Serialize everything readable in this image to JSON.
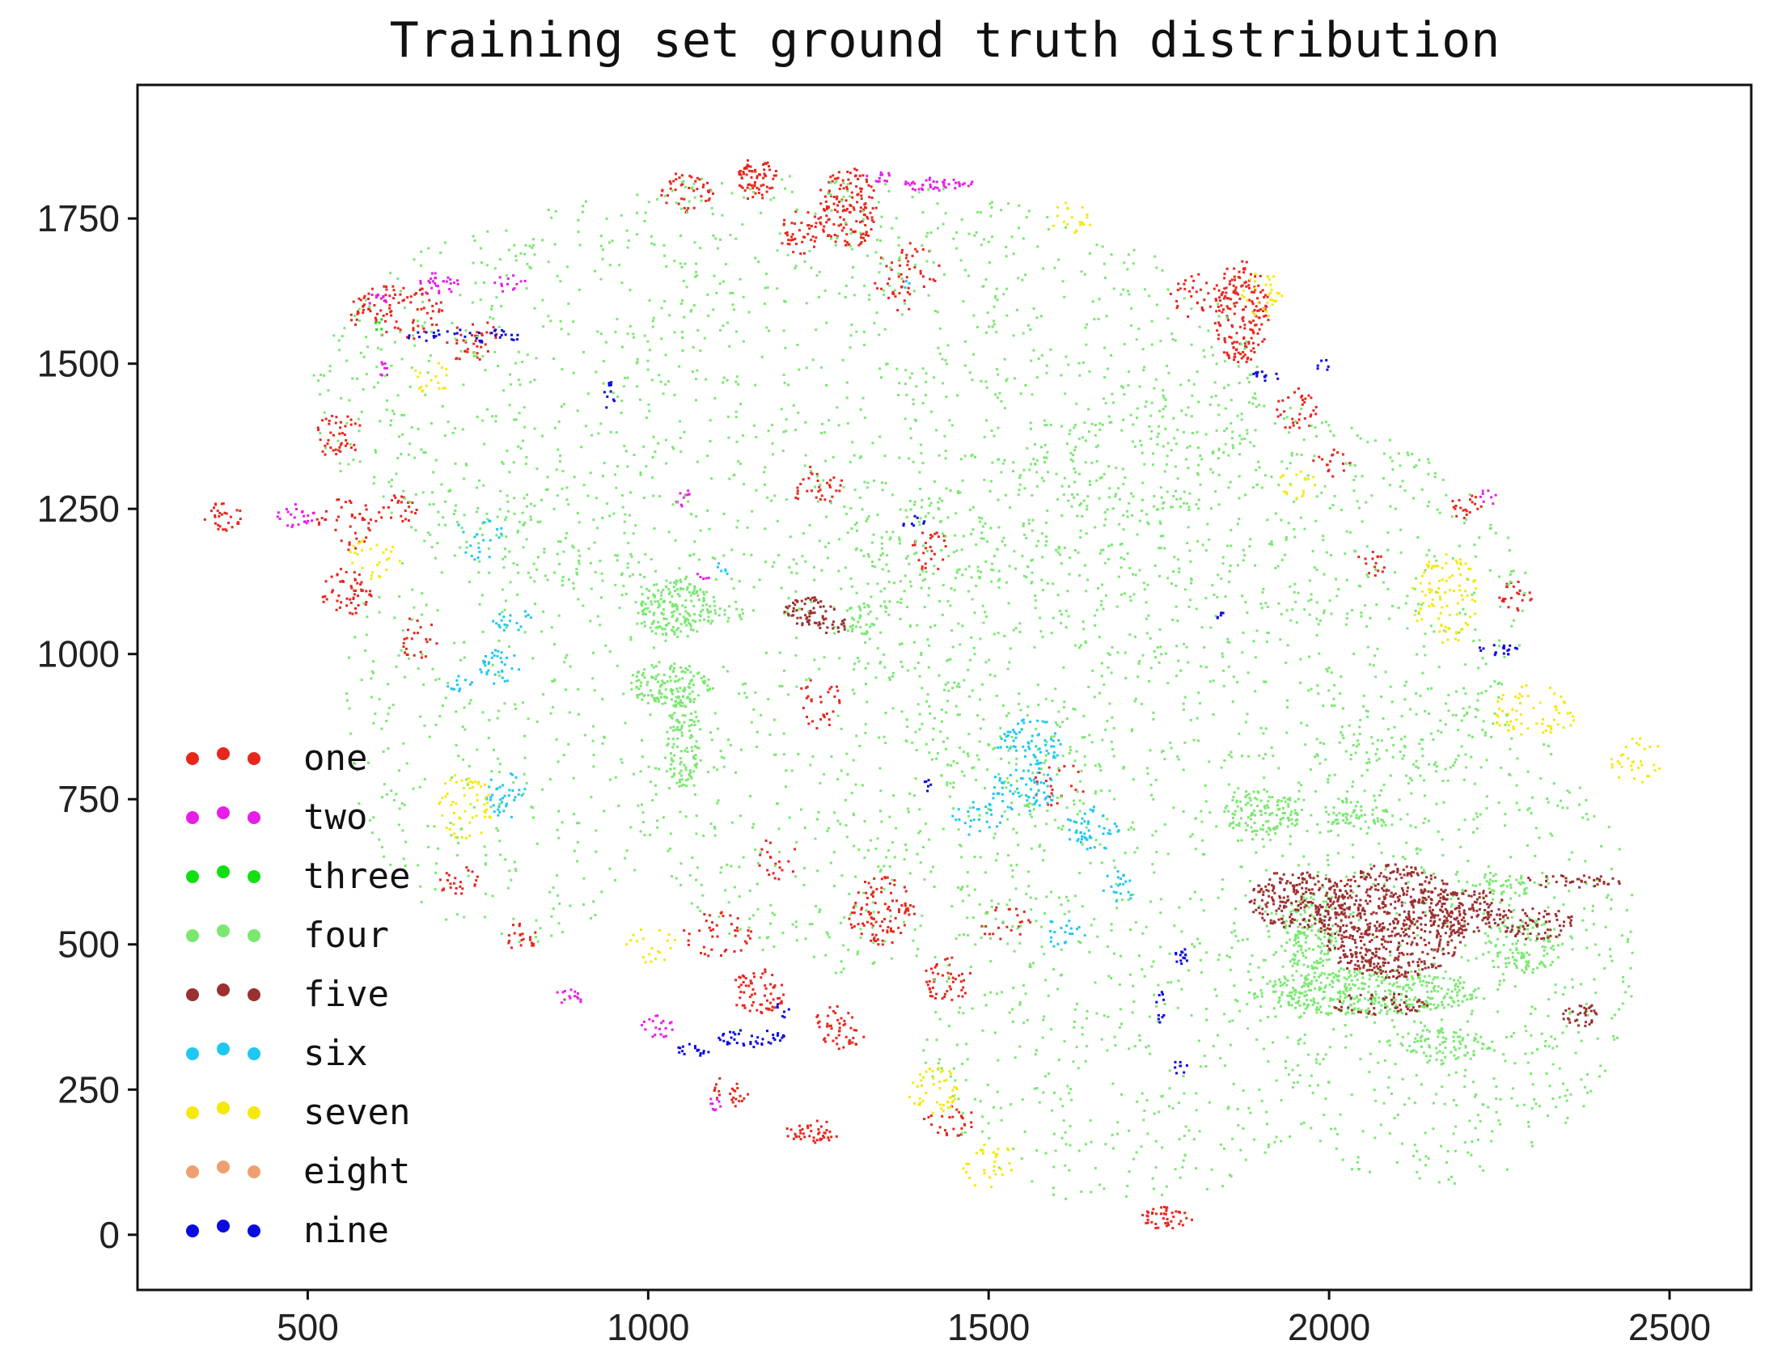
{
  "chart_data": {
    "type": "scatter",
    "title": "Training set ground truth distribution",
    "xlabel": "",
    "ylabel": "",
    "xlim": [
      250,
      2620
    ],
    "ylim": [
      -95,
      1980
    ],
    "xticks": [
      500,
      1000,
      1500,
      2000,
      2500
    ],
    "yticks": [
      0,
      250,
      500,
      750,
      1000,
      1250,
      1500,
      1750
    ],
    "grid": false,
    "legend_position": "lower-left",
    "series": [
      {
        "name": "one",
        "color": "#e8261c",
        "clusters": [
          {
            "cx": 1160,
            "cy": 1820,
            "rx": 30,
            "ry": 40,
            "density": 0.85
          },
          {
            "cx": 1290,
            "cy": 1770,
            "rx": 45,
            "ry": 70,
            "density": 0.7
          },
          {
            "cx": 1220,
            "cy": 1730,
            "rx": 30,
            "ry": 40,
            "density": 0.5
          },
          {
            "cx": 1055,
            "cy": 1800,
            "rx": 40,
            "ry": 40,
            "density": 0.4
          },
          {
            "cx": 1380,
            "cy": 1650,
            "rx": 50,
            "ry": 60,
            "density": 0.25
          },
          {
            "cx": 1870,
            "cy": 1590,
            "rx": 40,
            "ry": 90,
            "density": 0.75
          },
          {
            "cx": 1805,
            "cy": 1620,
            "rx": 40,
            "ry": 40,
            "density": 0.3
          },
          {
            "cx": 1950,
            "cy": 1420,
            "rx": 30,
            "ry": 40,
            "density": 0.4
          },
          {
            "cx": 630,
            "cy": 1590,
            "rx": 70,
            "ry": 50,
            "density": 0.4
          },
          {
            "cx": 740,
            "cy": 1540,
            "rx": 40,
            "ry": 40,
            "density": 0.35
          },
          {
            "cx": 540,
            "cy": 1380,
            "rx": 40,
            "ry": 40,
            "density": 0.4
          },
          {
            "cx": 375,
            "cy": 1240,
            "rx": 30,
            "ry": 30,
            "density": 0.5
          },
          {
            "cx": 555,
            "cy": 1225,
            "rx": 45,
            "ry": 45,
            "density": 0.3
          },
          {
            "cx": 555,
            "cy": 1110,
            "rx": 40,
            "ry": 40,
            "density": 0.5
          },
          {
            "cx": 630,
            "cy": 1250,
            "rx": 30,
            "ry": 30,
            "density": 0.4
          },
          {
            "cx": 660,
            "cy": 1030,
            "rx": 30,
            "ry": 40,
            "density": 0.3
          },
          {
            "cx": 1250,
            "cy": 1290,
            "rx": 40,
            "ry": 40,
            "density": 0.3
          },
          {
            "cx": 1410,
            "cy": 1180,
            "rx": 30,
            "ry": 40,
            "density": 0.35
          },
          {
            "cx": 1250,
            "cy": 920,
            "rx": 30,
            "ry": 50,
            "density": 0.3
          },
          {
            "cx": 1190,
            "cy": 650,
            "rx": 30,
            "ry": 40,
            "density": 0.25
          },
          {
            "cx": 1340,
            "cy": 560,
            "rx": 50,
            "ry": 60,
            "density": 0.5
          },
          {
            "cx": 1160,
            "cy": 420,
            "rx": 40,
            "ry": 40,
            "density": 0.6
          },
          {
            "cx": 1280,
            "cy": 360,
            "rx": 40,
            "ry": 40,
            "density": 0.45
          },
          {
            "cx": 1100,
            "cy": 520,
            "rx": 50,
            "ry": 40,
            "density": 0.3
          },
          {
            "cx": 1440,
            "cy": 440,
            "rx": 40,
            "ry": 40,
            "density": 0.45
          },
          {
            "cx": 1520,
            "cy": 540,
            "rx": 40,
            "ry": 30,
            "density": 0.3
          },
          {
            "cx": 1240,
            "cy": 180,
            "rx": 40,
            "ry": 20,
            "density": 0.8
          },
          {
            "cx": 1120,
            "cy": 250,
            "rx": 30,
            "ry": 30,
            "density": 0.4
          },
          {
            "cx": 1440,
            "cy": 200,
            "rx": 40,
            "ry": 30,
            "density": 0.35
          },
          {
            "cx": 1760,
            "cy": 30,
            "rx": 40,
            "ry": 20,
            "density": 0.8
          },
          {
            "cx": 2200,
            "cy": 1250,
            "rx": 25,
            "ry": 30,
            "density": 0.4
          },
          {
            "cx": 2060,
            "cy": 1160,
            "rx": 25,
            "ry": 25,
            "density": 0.35
          },
          {
            "cx": 2270,
            "cy": 1100,
            "rx": 30,
            "ry": 30,
            "density": 0.4
          },
          {
            "cx": 720,
            "cy": 610,
            "rx": 30,
            "ry": 30,
            "density": 0.4
          },
          {
            "cx": 810,
            "cy": 520,
            "rx": 30,
            "ry": 30,
            "density": 0.35
          },
          {
            "cx": 1600,
            "cy": 780,
            "rx": 40,
            "ry": 40,
            "density": 0.2
          },
          {
            "cx": 2000,
            "cy": 1330,
            "rx": 30,
            "ry": 30,
            "density": 0.3
          }
        ]
      },
      {
        "name": "two",
        "color": "#e81ee8",
        "clusters": [
          {
            "cx": 1410,
            "cy": 1810,
            "rx": 40,
            "ry": 12,
            "density": 0.9
          },
          {
            "cx": 1340,
            "cy": 1820,
            "rx": 25,
            "ry": 12,
            "density": 0.6
          },
          {
            "cx": 1440,
            "cy": 1810,
            "rx": 40,
            "ry": 10,
            "density": 0.5
          },
          {
            "cx": 690,
            "cy": 1640,
            "rx": 30,
            "ry": 20,
            "density": 0.7
          },
          {
            "cx": 600,
            "cy": 1610,
            "rx": 15,
            "ry": 15,
            "density": 0.7
          },
          {
            "cx": 795,
            "cy": 1640,
            "rx": 25,
            "ry": 15,
            "density": 0.5
          },
          {
            "cx": 605,
            "cy": 1490,
            "rx": 15,
            "ry": 15,
            "density": 0.5
          },
          {
            "cx": 480,
            "cy": 1240,
            "rx": 30,
            "ry": 20,
            "density": 0.6
          },
          {
            "cx": 1050,
            "cy": 1270,
            "rx": 15,
            "ry": 15,
            "density": 0.7
          },
          {
            "cx": 1080,
            "cy": 1140,
            "rx": 10,
            "ry": 12,
            "density": 0.6
          },
          {
            "cx": 880,
            "cy": 410,
            "rx": 25,
            "ry": 15,
            "density": 0.6
          },
          {
            "cx": 1010,
            "cy": 360,
            "rx": 25,
            "ry": 20,
            "density": 0.6
          },
          {
            "cx": 1100,
            "cy": 230,
            "rx": 15,
            "ry": 15,
            "density": 0.6
          },
          {
            "cx": 2230,
            "cy": 1270,
            "rx": 15,
            "ry": 15,
            "density": 0.5
          }
        ]
      },
      {
        "name": "three",
        "color": "#10e010",
        "clusters": [
          {
            "cx": 600,
            "cy": 1570,
            "rx": 15,
            "ry": 10,
            "density": 0.6
          }
        ]
      },
      {
        "name": "four",
        "color": "#7ae870",
        "clusters": [
          {
            "cx": 1200,
            "cy": 1450,
            "rx": 700,
            "ry": 380,
            "density": 0.09
          },
          {
            "cx": 1800,
            "cy": 1050,
            "rx": 500,
            "ry": 400,
            "density": 0.09
          },
          {
            "cx": 2150,
            "cy": 500,
            "rx": 300,
            "ry": 420,
            "density": 0.08
          },
          {
            "cx": 1700,
            "cy": 350,
            "rx": 300,
            "ry": 300,
            "density": 0.07
          },
          {
            "cx": 800,
            "cy": 900,
            "rx": 250,
            "ry": 400,
            "density": 0.06
          },
          {
            "cx": 1300,
            "cy": 750,
            "rx": 300,
            "ry": 300,
            "density": 0.07
          },
          {
            "cx": 1040,
            "cy": 1080,
            "rx": 60,
            "ry": 50,
            "density": 0.9
          },
          {
            "cx": 1030,
            "cy": 950,
            "rx": 60,
            "ry": 40,
            "density": 0.85
          },
          {
            "cx": 1050,
            "cy": 850,
            "rx": 25,
            "ry": 80,
            "density": 0.8
          },
          {
            "cx": 1310,
            "cy": 1060,
            "rx": 25,
            "ry": 30,
            "density": 0.6
          },
          {
            "cx": 1120,
            "cy": 1070,
            "rx": 20,
            "ry": 15,
            "density": 0.6
          },
          {
            "cx": 2050,
            "cy": 420,
            "rx": 170,
            "ry": 40,
            "density": 0.8
          },
          {
            "cx": 1970,
            "cy": 520,
            "rx": 40,
            "ry": 70,
            "density": 0.7
          },
          {
            "cx": 1900,
            "cy": 730,
            "rx": 60,
            "ry": 40,
            "density": 0.75
          },
          {
            "cx": 2050,
            "cy": 720,
            "rx": 60,
            "ry": 20,
            "density": 0.6
          },
          {
            "cx": 2170,
            "cy": 330,
            "rx": 70,
            "ry": 30,
            "density": 0.6
          },
          {
            "cx": 2280,
            "cy": 500,
            "rx": 60,
            "ry": 50,
            "density": 0.5
          },
          {
            "cx": 2250,
            "cy": 600,
            "rx": 60,
            "ry": 20,
            "density": 0.5
          }
        ]
      },
      {
        "name": "five",
        "color": "#9c3030",
        "clusters": [
          {
            "cx": 2090,
            "cy": 540,
            "rx": 110,
            "ry": 100,
            "density": 0.9
          },
          {
            "cx": 1950,
            "cy": 580,
            "rx": 70,
            "ry": 50,
            "density": 0.85
          },
          {
            "cx": 2200,
            "cy": 560,
            "rx": 60,
            "ry": 40,
            "density": 0.7
          },
          {
            "cx": 2300,
            "cy": 540,
            "rx": 60,
            "ry": 30,
            "density": 0.6
          },
          {
            "cx": 2350,
            "cy": 610,
            "rx": 80,
            "ry": 12,
            "density": 0.6
          },
          {
            "cx": 2370,
            "cy": 380,
            "rx": 30,
            "ry": 20,
            "density": 0.8
          },
          {
            "cx": 2080,
            "cy": 400,
            "rx": 80,
            "ry": 20,
            "density": 0.5
          },
          {
            "cx": 1235,
            "cy": 1075,
            "rx": 40,
            "ry": 25,
            "density": 0.9
          },
          {
            "cx": 1270,
            "cy": 1050,
            "rx": 25,
            "ry": 15,
            "density": 0.8
          }
        ]
      },
      {
        "name": "six",
        "color": "#1ec8f0",
        "clusters": [
          {
            "cx": 780,
            "cy": 980,
            "rx": 30,
            "ry": 30,
            "density": 0.55
          },
          {
            "cx": 720,
            "cy": 950,
            "rx": 20,
            "ry": 20,
            "density": 0.45
          },
          {
            "cx": 800,
            "cy": 1060,
            "rx": 30,
            "ry": 20,
            "density": 0.5
          },
          {
            "cx": 790,
            "cy": 760,
            "rx": 30,
            "ry": 40,
            "density": 0.45
          },
          {
            "cx": 750,
            "cy": 1200,
            "rx": 40,
            "ry": 40,
            "density": 0.2
          },
          {
            "cx": 1560,
            "cy": 850,
            "rx": 50,
            "ry": 40,
            "density": 0.5
          },
          {
            "cx": 1550,
            "cy": 770,
            "rx": 50,
            "ry": 40,
            "density": 0.45
          },
          {
            "cx": 1650,
            "cy": 700,
            "rx": 40,
            "ry": 40,
            "density": 0.45
          },
          {
            "cx": 1690,
            "cy": 600,
            "rx": 25,
            "ry": 30,
            "density": 0.4
          },
          {
            "cx": 1480,
            "cy": 720,
            "rx": 40,
            "ry": 30,
            "density": 0.35
          },
          {
            "cx": 1600,
            "cy": 520,
            "rx": 40,
            "ry": 25,
            "density": 0.3
          },
          {
            "cx": 1110,
            "cy": 1150,
            "rx": 12,
            "ry": 12,
            "density": 0.6
          },
          {
            "cx": 1380,
            "cy": 1640,
            "rx": 10,
            "ry": 10,
            "density": 0.5
          }
        ]
      },
      {
        "name": "seven",
        "color": "#f5e80a",
        "clusters": [
          {
            "cx": 1900,
            "cy": 1620,
            "rx": 30,
            "ry": 40,
            "density": 0.4
          },
          {
            "cx": 1620,
            "cy": 1750,
            "rx": 30,
            "ry": 30,
            "density": 0.35
          },
          {
            "cx": 2170,
            "cy": 1100,
            "rx": 50,
            "ry": 80,
            "density": 0.35
          },
          {
            "cx": 2300,
            "cy": 900,
            "rx": 60,
            "ry": 50,
            "density": 0.3
          },
          {
            "cx": 2450,
            "cy": 820,
            "rx": 40,
            "ry": 40,
            "density": 0.3
          },
          {
            "cx": 730,
            "cy": 740,
            "rx": 40,
            "ry": 60,
            "density": 0.35
          },
          {
            "cx": 680,
            "cy": 1480,
            "rx": 30,
            "ry": 30,
            "density": 0.3
          },
          {
            "cx": 600,
            "cy": 1170,
            "rx": 40,
            "ry": 40,
            "density": 0.25
          },
          {
            "cx": 1420,
            "cy": 250,
            "rx": 40,
            "ry": 40,
            "density": 0.45
          },
          {
            "cx": 1500,
            "cy": 120,
            "rx": 40,
            "ry": 40,
            "density": 0.3
          },
          {
            "cx": 1000,
            "cy": 500,
            "rx": 40,
            "ry": 30,
            "density": 0.25
          },
          {
            "cx": 1950,
            "cy": 1300,
            "rx": 30,
            "ry": 30,
            "density": 0.3
          }
        ]
      },
      {
        "name": "eight",
        "color": "#f0a070",
        "clusters": []
      },
      {
        "name": "nine",
        "color": "#0a0ae0",
        "clusters": [
          {
            "cx": 2245,
            "cy": 1010,
            "rx": 30,
            "ry": 10,
            "density": 0.9
          },
          {
            "cx": 1780,
            "cy": 480,
            "rx": 15,
            "ry": 15,
            "density": 0.9
          },
          {
            "cx": 1780,
            "cy": 290,
            "rx": 10,
            "ry": 15,
            "density": 0.8
          },
          {
            "cx": 1750,
            "cy": 390,
            "rx": 6,
            "ry": 40,
            "density": 0.6
          },
          {
            "cx": 1840,
            "cy": 1070,
            "rx": 10,
            "ry": 8,
            "density": 0.9
          },
          {
            "cx": 1900,
            "cy": 1480,
            "rx": 25,
            "ry": 10,
            "density": 0.7
          },
          {
            "cx": 1990,
            "cy": 1500,
            "rx": 12,
            "ry": 10,
            "density": 0.7
          },
          {
            "cx": 1150,
            "cy": 340,
            "rx": 50,
            "ry": 15,
            "density": 0.8
          },
          {
            "cx": 1060,
            "cy": 320,
            "rx": 30,
            "ry": 12,
            "density": 0.7
          },
          {
            "cx": 1195,
            "cy": 390,
            "rx": 10,
            "ry": 15,
            "density": 0.7
          },
          {
            "cx": 730,
            "cy": 1550,
            "rx": 90,
            "ry": 12,
            "density": 0.5
          },
          {
            "cx": 940,
            "cy": 1450,
            "rx": 10,
            "ry": 30,
            "density": 0.5
          },
          {
            "cx": 1410,
            "cy": 780,
            "rx": 6,
            "ry": 30,
            "density": 0.5
          },
          {
            "cx": 1390,
            "cy": 1230,
            "rx": 25,
            "ry": 10,
            "density": 0.5
          }
        ]
      }
    ]
  }
}
